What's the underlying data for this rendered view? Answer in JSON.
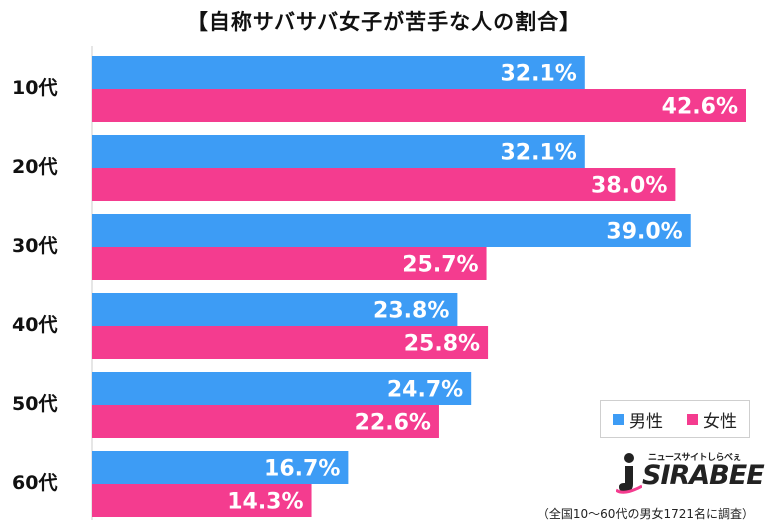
{
  "title": "【自称サバサバ女子が苦手な人の割合】",
  "legend": {
    "male_label": "男性",
    "female_label": "女性"
  },
  "colors": {
    "male": "#3d9cf5",
    "female": "#f43c8f"
  },
  "logo": {
    "small_text": "ニュースサイトしらべぇ",
    "main_text": "SIRABEE"
  },
  "footnote": "（全国10～60代の男女1721名に調査）",
  "chart_data": {
    "type": "bar",
    "orientation": "horizontal",
    "categories": [
      "10代",
      "20代",
      "30代",
      "40代",
      "50代",
      "60代"
    ],
    "series": [
      {
        "name": "男性",
        "values": [
          32.1,
          32.1,
          39.0,
          23.8,
          24.7,
          16.7
        ],
        "labels": [
          "32.1%",
          "32.1%",
          "39.0%",
          "23.8%",
          "24.7%",
          "16.7%"
        ]
      },
      {
        "name": "女性",
        "values": [
          42.6,
          38.0,
          25.7,
          25.8,
          22.6,
          14.3
        ],
        "labels": [
          "42.6%",
          "38.0%",
          "25.7%",
          "25.8%",
          "22.6%",
          "14.3%"
        ]
      }
    ],
    "xlim": [
      0,
      42.6
    ],
    "grid": false,
    "legend_position": "bottom-right"
  }
}
